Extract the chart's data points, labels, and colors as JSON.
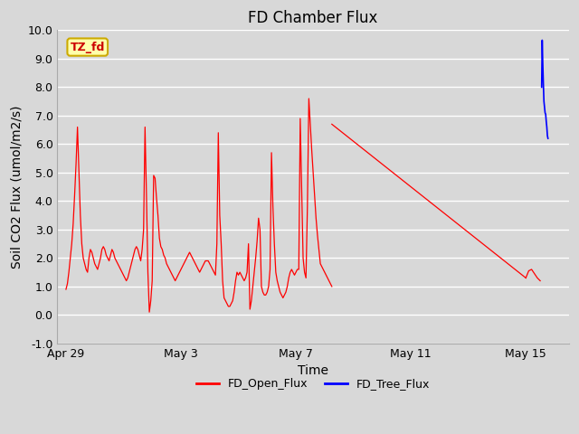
{
  "title": "FD Chamber Flux",
  "xlabel": "Time",
  "ylabel": "Soil CO2 Flux (umol/m2/s)",
  "ylim": [
    -1.0,
    10.0
  ],
  "yticks": [
    -1.0,
    0.0,
    1.0,
    2.0,
    3.0,
    4.0,
    5.0,
    6.0,
    7.0,
    8.0,
    9.0,
    10.0
  ],
  "bg_color": "#d8d8d8",
  "plot_bg_color": "#d8d8d8",
  "grid_color": "#ffffff",
  "label_box_text": "TZ_fd",
  "label_box_bg": "#ffffaa",
  "label_box_edge": "#ccaa00",
  "label_box_text_color": "#cc0000",
  "red_color": "#ff0000",
  "blue_color": "#0000ff",
  "legend_labels": [
    "FD_Open_Flux",
    "FD_Tree_Flux"
  ],
  "title_fontsize": 12,
  "axis_label_fontsize": 10,
  "tick_fontsize": 9,
  "xlim_days": [
    -0.3,
    17.5
  ],
  "xtick_positions_days": [
    0,
    4,
    8,
    12,
    16
  ],
  "xtick_labels": [
    "Apr 29",
    "May 3",
    "May 7",
    "May 11",
    "May 15"
  ],
  "red_noisy": {
    "days": [
      0.0,
      0.05,
      0.1,
      0.15,
      0.2,
      0.25,
      0.3,
      0.35,
      0.4,
      0.45,
      0.5,
      0.55,
      0.6,
      0.65,
      0.7,
      0.75,
      0.8,
      0.85,
      0.9,
      0.95,
      1.0,
      1.05,
      1.1,
      1.15,
      1.2,
      1.25,
      1.3,
      1.35,
      1.4,
      1.45,
      1.5,
      1.55,
      1.6,
      1.65,
      1.7,
      1.75,
      1.8,
      1.85,
      1.9,
      1.95,
      2.0,
      2.05,
      2.1,
      2.15,
      2.2,
      2.25,
      2.3,
      2.35,
      2.4,
      2.45,
      2.5,
      2.55,
      2.6,
      2.65,
      2.7,
      2.75,
      2.8,
      2.85,
      2.9,
      2.95,
      3.0,
      3.05,
      3.1,
      3.15,
      3.2,
      3.25,
      3.3,
      3.35,
      3.4,
      3.45,
      3.5,
      3.55,
      3.6,
      3.65,
      3.7,
      3.75,
      3.8,
      3.85,
      3.9,
      3.95,
      4.0,
      4.05,
      4.1,
      4.15,
      4.2,
      4.25,
      4.3,
      4.35,
      4.4,
      4.45,
      4.5,
      4.55,
      4.6,
      4.65,
      4.7,
      4.75,
      4.8,
      4.85,
      4.9,
      4.95,
      5.0,
      5.05,
      5.1,
      5.15,
      5.2,
      5.25,
      5.3,
      5.35,
      5.4,
      5.45,
      5.5,
      5.55,
      5.6,
      5.65,
      5.7,
      5.75,
      5.8,
      5.85,
      5.9,
      5.95,
      6.0,
      6.05,
      6.1,
      6.15,
      6.2,
      6.25,
      6.3,
      6.35,
      6.4,
      6.45,
      6.5,
      6.55,
      6.6,
      6.65,
      6.7,
      6.75,
      6.8,
      6.85,
      6.9,
      6.95,
      7.0,
      7.05,
      7.1,
      7.15,
      7.2,
      7.25,
      7.3,
      7.35,
      7.4,
      7.45,
      7.5,
      7.55,
      7.6,
      7.65,
      7.7,
      7.75,
      7.8,
      7.85,
      7.9,
      7.95,
      8.0,
      8.05,
      8.1,
      8.15,
      8.2,
      8.25,
      8.3,
      8.35,
      8.4,
      8.45,
      8.5,
      8.55,
      8.6,
      8.65,
      8.7,
      8.75,
      8.8,
      8.85,
      8.9,
      8.95,
      9.0,
      9.05,
      9.1,
      9.15,
      9.2,
      9.25
    ],
    "values": [
      0.9,
      1.1,
      1.5,
      2.0,
      2.5,
      3.2,
      4.2,
      5.3,
      6.6,
      5.0,
      3.5,
      2.5,
      2.0,
      1.8,
      1.6,
      1.5,
      2.0,
      2.3,
      2.2,
      2.0,
      1.8,
      1.7,
      1.6,
      1.8,
      2.0,
      2.3,
      2.4,
      2.3,
      2.1,
      2.0,
      1.9,
      2.1,
      2.3,
      2.2,
      2.0,
      1.9,
      1.8,
      1.7,
      1.6,
      1.5,
      1.4,
      1.3,
      1.2,
      1.3,
      1.5,
      1.7,
      1.9,
      2.1,
      2.3,
      2.4,
      2.3,
      2.1,
      1.9,
      2.3,
      3.0,
      6.6,
      4.2,
      1.5,
      0.1,
      0.5,
      1.2,
      4.9,
      4.8,
      4.1,
      3.5,
      2.7,
      2.4,
      2.3,
      2.1,
      2.0,
      1.8,
      1.7,
      1.6,
      1.5,
      1.4,
      1.3,
      1.2,
      1.3,
      1.4,
      1.5,
      1.6,
      1.7,
      1.8,
      1.9,
      2.0,
      2.1,
      2.2,
      2.1,
      2.0,
      1.9,
      1.8,
      1.7,
      1.6,
      1.5,
      1.6,
      1.7,
      1.8,
      1.9,
      1.9,
      1.9,
      1.8,
      1.7,
      1.6,
      1.5,
      1.4,
      2.5,
      6.4,
      3.5,
      2.5,
      1.2,
      0.6,
      0.5,
      0.4,
      0.3,
      0.3,
      0.4,
      0.5,
      0.8,
      1.2,
      1.5,
      1.4,
      1.5,
      1.4,
      1.3,
      1.2,
      1.3,
      1.5,
      2.5,
      0.2,
      0.5,
      1.0,
      1.5,
      2.0,
      2.6,
      3.4,
      3.0,
      1.0,
      0.8,
      0.7,
      0.7,
      0.8,
      1.0,
      1.6,
      5.7,
      3.8,
      2.5,
      1.5,
      1.2,
      1.0,
      0.8,
      0.7,
      0.6,
      0.7,
      0.8,
      1.0,
      1.3,
      1.5,
      1.6,
      1.5,
      1.4,
      1.5,
      1.6,
      1.6,
      6.9,
      4.5,
      2.0,
      1.5,
      1.3,
      3.8,
      7.6,
      6.7,
      5.8,
      5.0,
      4.2,
      3.4,
      2.8,
      2.3,
      1.8,
      1.7,
      1.6,
      1.5,
      1.4,
      1.3,
      1.2,
      1.1,
      1.0
    ]
  },
  "red_linear": {
    "days": [
      9.25,
      16.0
    ],
    "values": [
      6.7,
      1.3
    ]
  },
  "red_tail": {
    "days": [
      16.0,
      16.1,
      16.2,
      16.3,
      16.4,
      16.5
    ],
    "values": [
      1.3,
      1.55,
      1.6,
      1.45,
      1.3,
      1.2
    ]
  },
  "blue_data": {
    "days": [
      16.55,
      16.57,
      16.59,
      16.61,
      16.63,
      16.65,
      16.67,
      16.69,
      16.71,
      16.73,
      16.75,
      16.77
    ],
    "values": [
      8.0,
      9.65,
      8.8,
      8.1,
      7.5,
      7.3,
      7.1,
      7.05,
      6.8,
      6.6,
      6.3,
      6.2
    ]
  }
}
